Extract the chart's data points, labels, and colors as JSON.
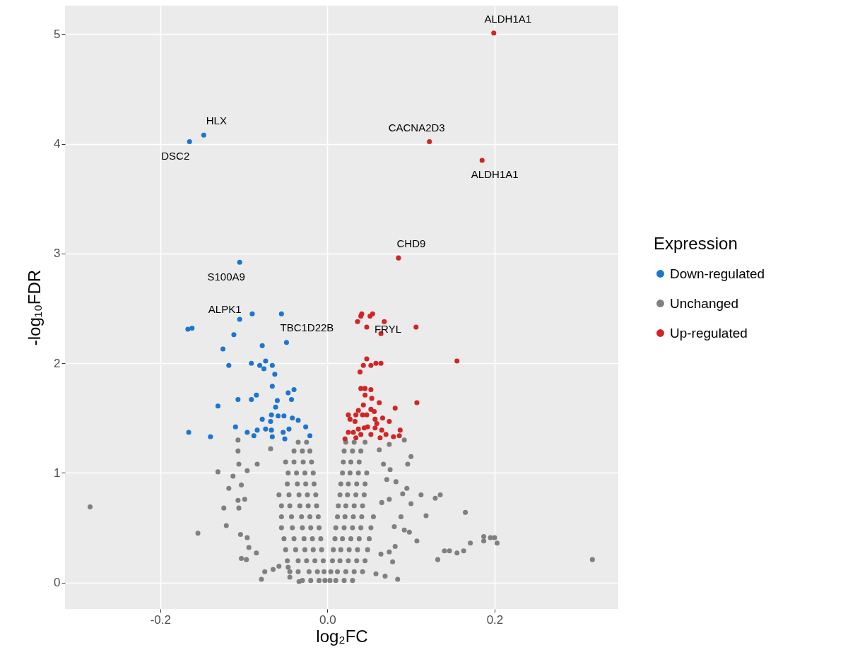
{
  "chart_data": {
    "type": "scatter",
    "xlabel": "log₂FC",
    "ylabel": "-log₁₀FDR",
    "legend_title": "Expression",
    "legend": "right",
    "grid": true,
    "marker": "circle",
    "xlim": [
      -0.314,
      0.348
    ],
    "ylim": [
      -0.24,
      5.26
    ],
    "xticks": [
      -0.2,
      {
        "value": 0,
        "label": "0.0"
      },
      0.2
    ],
    "yticks": [
      0,
      1,
      2,
      3,
      4,
      5
    ],
    "series": [
      {
        "name": "Down-regulated",
        "color": "#1c75d0",
        "x": [
          -0.165,
          -0.148,
          -0.105,
          -0.09,
          -0.105,
          -0.055,
          -0.167,
          -0.162,
          -0.112,
          -0.049,
          -0.078,
          -0.125,
          -0.118,
          -0.091,
          -0.081,
          -0.074,
          -0.076,
          -0.066,
          -0.063,
          -0.066,
          -0.047,
          -0.04,
          -0.085,
          -0.107,
          -0.091,
          -0.06,
          -0.043,
          -0.131,
          -0.062,
          -0.067,
          -0.059,
          -0.052,
          -0.078,
          -0.042,
          -0.035,
          -0.068,
          -0.11,
          -0.026,
          -0.166,
          -0.14,
          -0.096,
          -0.088,
          -0.084,
          -0.074,
          -0.067,
          -0.053,
          -0.046,
          -0.021,
          -0.066,
          -0.051
        ],
        "values": [
          4.02,
          4.08,
          2.92,
          2.45,
          2.4,
          2.45,
          2.31,
          2.32,
          2.26,
          2.19,
          2.16,
          2.13,
          1.98,
          2.0,
          1.98,
          2.02,
          1.95,
          1.98,
          1.9,
          1.79,
          1.73,
          1.76,
          1.71,
          1.67,
          1.67,
          1.66,
          1.67,
          1.61,
          1.6,
          1.53,
          1.52,
          1.52,
          1.49,
          1.5,
          1.48,
          1.47,
          1.42,
          1.42,
          1.37,
          1.33,
          1.37,
          1.34,
          1.39,
          1.4,
          1.39,
          1.37,
          1.4,
          1.34,
          1.33,
          1.31
        ]
      },
      {
        "name": "Unchanged",
        "color": "#808080",
        "x": [
          -0.284,
          -0.155,
          0.317,
          -0.131,
          -0.124,
          -0.121,
          -0.118,
          -0.107,
          -0.107,
          -0.106,
          -0.113,
          -0.107,
          -0.106,
          -0.104,
          -0.103,
          -0.097,
          -0.094,
          -0.096,
          -0.079,
          -0.075,
          -0.085,
          -0.099,
          -0.103,
          -0.096,
          -0.084,
          -0.068,
          -0.065,
          -0.058,
          -0.047,
          -0.045,
          -0.034,
          -0.003,
          -0.01,
          -0.02,
          -0.03,
          -0.004,
          -0.012,
          -0.022,
          -0.035,
          -0.045,
          -0.005,
          -0.015,
          -0.025,
          -0.035,
          -0.048,
          -0.007,
          -0.017,
          -0.027,
          -0.038,
          -0.05,
          -0.008,
          -0.018,
          -0.028,
          -0.04,
          -0.052,
          -0.01,
          -0.02,
          -0.03,
          -0.042,
          -0.055,
          -0.011,
          -0.021,
          -0.031,
          -0.043,
          -0.055,
          -0.013,
          -0.023,
          -0.033,
          -0.045,
          -0.055,
          -0.014,
          -0.024,
          -0.034,
          -0.046,
          -0.058,
          -0.016,
          -0.026,
          -0.036,
          -0.048,
          -0.017,
          -0.027,
          -0.037,
          -0.047,
          -0.019,
          -0.029,
          -0.04,
          -0.05,
          -0.021,
          -0.03,
          -0.04,
          -0.025,
          -0.035,
          0.003,
          0.01,
          0.02,
          0.03,
          0.004,
          0.012,
          0.022,
          0.032,
          0.042,
          0.006,
          0.015,
          0.025,
          0.035,
          0.045,
          0.007,
          0.016,
          0.026,
          0.036,
          0.048,
          0.009,
          0.018,
          0.028,
          0.038,
          0.05,
          0.01,
          0.02,
          0.03,
          0.04,
          0.052,
          0.012,
          0.021,
          0.031,
          0.041,
          0.055,
          0.013,
          0.022,
          0.032,
          0.042,
          0.015,
          0.024,
          0.034,
          0.044,
          0.016,
          0.025,
          0.035,
          0.045,
          0.018,
          0.027,
          0.037,
          0.047,
          0.019,
          0.028,
          0.038,
          0.02,
          0.03,
          0.04,
          0.022,
          0.032,
          0.045,
          0.092,
          0.074,
          0.1,
          0.096,
          0.062,
          0.067,
          0.075,
          0.071,
          0.082,
          0.095,
          0.09,
          0.112,
          0.129,
          0.135,
          0.1,
          0.074,
          0.165,
          0.118,
          0.088,
          0.08,
          0.092,
          0.098,
          0.107,
          0.081,
          0.074,
          0.14,
          0.146,
          0.155,
          0.163,
          0.171,
          0.187,
          0.187,
          0.195,
          0.2,
          0.203,
          0.132,
          0.078,
          0.069,
          0.084,
          0.058,
          0.064,
          0.065
        ],
        "values": [
          0.69,
          0.45,
          0.21,
          1.01,
          0.68,
          0.52,
          0.86,
          1.3,
          1.2,
          1.08,
          0.97,
          0.75,
          0.68,
          0.44,
          0.22,
          0.21,
          0.32,
          0.41,
          0.03,
          0.1,
          0.27,
          0.76,
          0.89,
          1.02,
          1.08,
          1.22,
          0.12,
          0.15,
          0.14,
          0.05,
          0.01,
          0.02,
          0.02,
          0.02,
          0.02,
          0.1,
          0.1,
          0.1,
          0.1,
          0.1,
          0.2,
          0.2,
          0.2,
          0.2,
          0.2,
          0.3,
          0.3,
          0.3,
          0.3,
          0.3,
          0.4,
          0.4,
          0.4,
          0.4,
          0.4,
          0.5,
          0.5,
          0.5,
          0.5,
          0.5,
          0.6,
          0.6,
          0.6,
          0.6,
          0.6,
          0.7,
          0.7,
          0.7,
          0.7,
          0.7,
          0.8,
          0.8,
          0.8,
          0.8,
          0.8,
          0.9,
          0.9,
          0.9,
          0.9,
          1.0,
          1.0,
          1.0,
          1.0,
          1.1,
          1.1,
          1.1,
          1.1,
          1.2,
          1.2,
          1.2,
          1.28,
          1.28,
          0.02,
          0.02,
          0.02,
          0.02,
          0.1,
          0.1,
          0.1,
          0.1,
          0.1,
          0.2,
          0.2,
          0.2,
          0.2,
          0.2,
          0.3,
          0.3,
          0.3,
          0.3,
          0.3,
          0.4,
          0.4,
          0.4,
          0.4,
          0.4,
          0.5,
          0.5,
          0.5,
          0.5,
          0.5,
          0.6,
          0.6,
          0.6,
          0.6,
          0.6,
          0.7,
          0.7,
          0.7,
          0.7,
          0.8,
          0.8,
          0.8,
          0.8,
          0.9,
          0.9,
          0.9,
          0.9,
          1.0,
          1.0,
          1.0,
          1.0,
          1.1,
          1.1,
          1.1,
          1.2,
          1.2,
          1.2,
          1.28,
          1.28,
          1.28,
          1.3,
          1.26,
          1.15,
          1.08,
          1.21,
          1.08,
          1.03,
          0.94,
          0.92,
          0.86,
          0.81,
          0.8,
          0.77,
          0.8,
          0.72,
          0.76,
          0.64,
          0.61,
          0.6,
          0.51,
          0.48,
          0.46,
          0.38,
          0.33,
          0.28,
          0.29,
          0.29,
          0.27,
          0.29,
          0.36,
          0.42,
          0.38,
          0.41,
          0.41,
          0.36,
          0.21,
          0.19,
          0.06,
          0.03,
          0.08,
          0.26,
          0.73
        ]
      },
      {
        "name": "Up-regulated",
        "color": "#d32424",
        "x": [
          0.199,
          0.122,
          0.185,
          0.085,
          0.041,
          0.04,
          0.054,
          0.051,
          0.036,
          0.068,
          0.047,
          0.106,
          0.064,
          0.155,
          0.047,
          0.043,
          0.052,
          0.058,
          0.064,
          0.039,
          0.04,
          0.045,
          0.052,
          0.045,
          0.053,
          0.062,
          0.107,
          0.043,
          0.081,
          0.037,
          0.052,
          0.056,
          0.025,
          0.034,
          0.042,
          0.047,
          0.066,
          0.027,
          0.033,
          0.057,
          0.074,
          0.059,
          0.037,
          0.044,
          0.048,
          0.057,
          0.065,
          0.087,
          0.025,
          0.031,
          0.04,
          0.052,
          0.07,
          0.079,
          0.086,
          0.021,
          0.034,
          0.063
        ],
        "values": [
          5.01,
          4.02,
          3.85,
          2.96,
          2.45,
          2.43,
          2.45,
          2.43,
          2.38,
          2.38,
          2.33,
          2.33,
          2.27,
          2.02,
          2.04,
          1.98,
          1.98,
          2.0,
          2.0,
          1.92,
          1.77,
          1.77,
          1.76,
          1.71,
          1.68,
          1.64,
          1.64,
          1.62,
          1.59,
          1.57,
          1.58,
          1.56,
          1.53,
          1.53,
          1.53,
          1.53,
          1.5,
          1.49,
          1.47,
          1.49,
          1.47,
          1.45,
          1.4,
          1.41,
          1.42,
          1.41,
          1.39,
          1.39,
          1.37,
          1.37,
          1.35,
          1.35,
          1.35,
          1.33,
          1.34,
          1.31,
          1.32,
          1.32
        ]
      }
    ],
    "annotations": [
      {
        "text": "ALDH1A1",
        "x": 0.199,
        "y": 5.01
      },
      {
        "text": "HLX",
        "x": -0.148,
        "y": 4.08
      },
      {
        "text": "DSC2",
        "x": -0.165,
        "y": 4.02
      },
      {
        "text": "CACNA2D3",
        "x": 0.122,
        "y": 4.02
      },
      {
        "text": "ALDH1A1",
        "x": 0.185,
        "y": 3.85
      },
      {
        "text": "CHD9",
        "x": 0.085,
        "y": 2.96
      },
      {
        "text": "S100A9",
        "x": -0.105,
        "y": 2.92
      },
      {
        "text": "ALPK1",
        "x": -0.105,
        "y": 2.4
      },
      {
        "text": "TBC1D22B",
        "x": -0.049,
        "y": 2.19
      },
      {
        "text": "FRYL",
        "x": 0.047,
        "y": 2.33
      }
    ]
  }
}
